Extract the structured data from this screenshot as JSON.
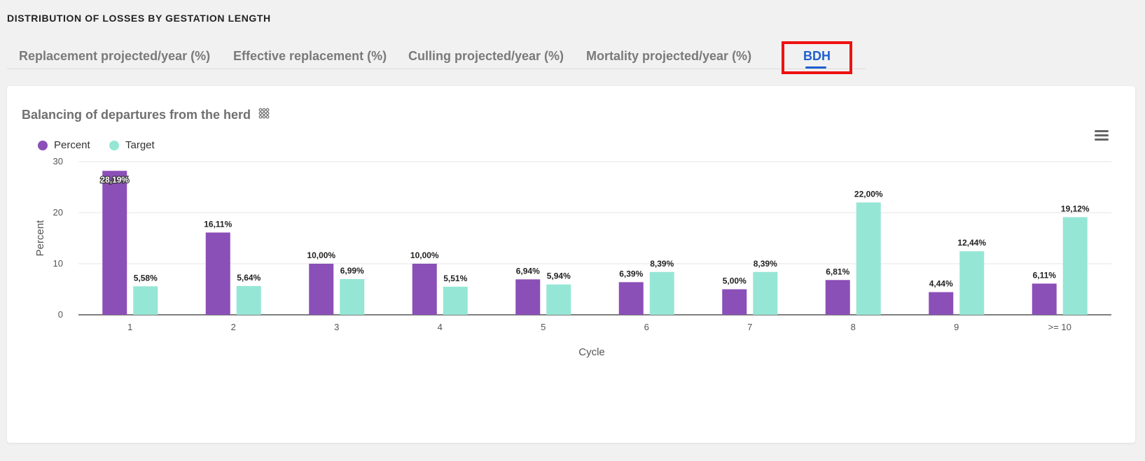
{
  "section": {
    "title": "DISTRIBUTION OF LOSSES BY GESTATION LENGTH"
  },
  "tabs": [
    {
      "label": "Replacement projected/year (%)"
    },
    {
      "label": "Effective replacement (%)"
    },
    {
      "label": "Culling projected/year (%)"
    },
    {
      "label": "Mortality projected/year (%)"
    },
    {
      "label": "BDH"
    }
  ],
  "active_tab": "BDH",
  "icons": {
    "grid": "grid-icon",
    "menu": "hamburger-menu-icon"
  },
  "colors": {
    "percent": "#8b4fb8",
    "target": "#96e6d6",
    "accent": "#1f5fcf",
    "highlight": "#ee1111"
  },
  "chart_data": {
    "type": "bar",
    "title": "Balancing of departures from the herd",
    "xlabel": "Cycle",
    "ylabel": "Percent",
    "ylim": [
      0,
      30
    ],
    "yticks": [
      "0",
      "10",
      "20",
      "30"
    ],
    "categories": [
      "1",
      "2",
      "3",
      "4",
      "5",
      "6",
      "7",
      "8",
      "9",
      ">= 10"
    ],
    "legend_position": "top-left",
    "grid": true,
    "series": [
      {
        "name": "Percent",
        "values": [
          28.19,
          16.11,
          10.0,
          10.0,
          6.94,
          6.39,
          5.0,
          6.81,
          4.44,
          6.11
        ],
        "labels": [
          "28,19%",
          "16,11%",
          "10,00%",
          "10,00%",
          "6,94%",
          "6,39%",
          "5,00%",
          "6,81%",
          "4,44%",
          "6,11%"
        ]
      },
      {
        "name": "Target",
        "values": [
          5.58,
          5.64,
          6.99,
          5.51,
          5.94,
          8.39,
          8.39,
          22.0,
          12.44,
          19.12
        ],
        "labels": [
          "5,58%",
          "5,64%",
          "6,99%",
          "5,51%",
          "5,94%",
          "8,39%",
          "8,39%",
          "22,00%",
          "12,44%",
          "19,12%"
        ]
      }
    ]
  }
}
